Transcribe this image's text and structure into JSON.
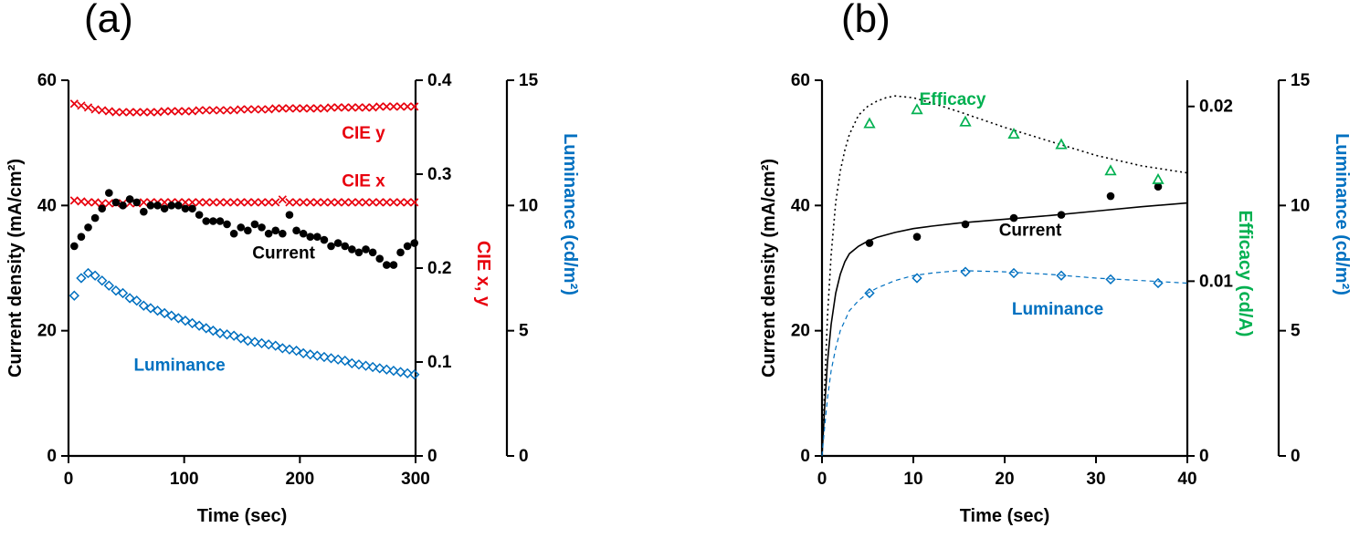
{
  "page": {
    "background": "#ffffff"
  },
  "colors": {
    "red": "#e8000d",
    "blue": "#0070c0",
    "green": "#00b050",
    "black": "#000000"
  },
  "chart_data": [
    {
      "type": "scatter",
      "panel_label": "(a)",
      "xlabel": "Time (sec)",
      "x_ticks": [
        "0",
        "100",
        "200",
        "300"
      ],
      "x_tick_values": [
        0,
        100,
        200,
        300
      ],
      "xlim": [
        0,
        300
      ],
      "grid": false,
      "axes": {
        "left": {
          "label": "Current density (mA/cm²)",
          "color": "#000000",
          "tick_labels": [
            "0",
            "20",
            "40",
            "60"
          ],
          "tick_values": [
            0,
            20,
            40,
            60
          ],
          "lim": [
            0,
            60
          ]
        },
        "right1": {
          "label": "CIE x, y",
          "color": "#e8000d",
          "tick_labels": [
            "0",
            "0.1",
            "0.2",
            "0.3",
            "0.4"
          ],
          "tick_values": [
            0,
            0.1,
            0.2,
            0.3,
            0.4
          ],
          "lim": [
            0,
            0.4
          ]
        },
        "right2": {
          "label": "Luminance (cd/m²)",
          "color": "#0070c0",
          "tick_labels": [
            "0",
            "5",
            "10",
            "15"
          ],
          "tick_values": [
            0,
            5,
            10,
            15
          ],
          "lim": [
            0,
            15
          ]
        }
      },
      "series": [
        {
          "name": "CIE y",
          "axis": "right1",
          "marker": "x",
          "line": "none",
          "color": "#e8000d",
          "x": [
            5,
            11,
            17,
            23,
            29,
            35,
            41,
            47,
            53,
            59,
            65,
            71,
            77,
            83,
            89,
            95,
            101,
            107,
            113,
            119,
            125,
            131,
            137,
            143,
            149,
            155,
            161,
            167,
            173,
            179,
            185,
            191,
            197,
            203,
            209,
            215,
            221,
            227,
            233,
            239,
            245,
            251,
            257,
            263,
            269,
            275,
            281,
            287,
            293,
            299
          ],
          "y": [
            0.375,
            0.373,
            0.371,
            0.369,
            0.368,
            0.367,
            0.366,
            0.366,
            0.366,
            0.366,
            0.366,
            0.366,
            0.366,
            0.367,
            0.367,
            0.367,
            0.367,
            0.367,
            0.368,
            0.368,
            0.368,
            0.368,
            0.368,
            0.368,
            0.369,
            0.369,
            0.369,
            0.369,
            0.369,
            0.37,
            0.37,
            0.37,
            0.37,
            0.37,
            0.37,
            0.37,
            0.37,
            0.371,
            0.371,
            0.371,
            0.371,
            0.371,
            0.371,
            0.371,
            0.372,
            0.372,
            0.372,
            0.372,
            0.372,
            0.372
          ]
        },
        {
          "name": "CIE x",
          "axis": "right1",
          "marker": "x",
          "line": "none",
          "color": "#e8000d",
          "x": [
            5,
            11,
            17,
            23,
            29,
            35,
            41,
            47,
            53,
            59,
            65,
            71,
            77,
            83,
            89,
            95,
            101,
            107,
            113,
            119,
            125,
            131,
            137,
            143,
            149,
            155,
            161,
            167,
            173,
            179,
            185,
            191,
            197,
            203,
            209,
            215,
            221,
            227,
            233,
            239,
            245,
            251,
            257,
            263,
            269,
            275,
            281,
            287,
            293,
            299
          ],
          "y": [
            0.272,
            0.271,
            0.27,
            0.27,
            0.269,
            0.269,
            0.269,
            0.269,
            0.269,
            0.269,
            0.27,
            0.27,
            0.27,
            0.27,
            0.27,
            0.27,
            0.27,
            0.27,
            0.27,
            0.27,
            0.27,
            0.27,
            0.27,
            0.27,
            0.27,
            0.27,
            0.27,
            0.27,
            0.27,
            0.27,
            0.273,
            0.27,
            0.27,
            0.27,
            0.27,
            0.27,
            0.27,
            0.27,
            0.27,
            0.27,
            0.27,
            0.27,
            0.27,
            0.27,
            0.27,
            0.27,
            0.27,
            0.27,
            0.27,
            0.27
          ]
        },
        {
          "name": "Current",
          "axis": "left",
          "marker": "circle",
          "line": "none",
          "color": "#000000",
          "x": [
            5,
            11,
            17,
            23,
            29,
            35,
            41,
            47,
            53,
            59,
            65,
            71,
            77,
            83,
            89,
            95,
            101,
            107,
            113,
            119,
            125,
            131,
            137,
            143,
            149,
            155,
            161,
            167,
            173,
            179,
            185,
            191,
            197,
            203,
            209,
            215,
            221,
            227,
            233,
            239,
            245,
            251,
            257,
            263,
            269,
            275,
            281,
            287,
            293,
            299
          ],
          "y": [
            33.5,
            35,
            36.5,
            38,
            39.5,
            42,
            40.5,
            40,
            41,
            40.5,
            39,
            40,
            40,
            39.5,
            40,
            40,
            39.5,
            39.5,
            38.5,
            37.5,
            37.5,
            37.5,
            37,
            35.5,
            36.5,
            36,
            37,
            36.5,
            35.5,
            36,
            35.5,
            38.5,
            36,
            35.5,
            35,
            35,
            34.5,
            33.5,
            34,
            33.5,
            33,
            32.5,
            33,
            32.5,
            31.5,
            30.5,
            30.5,
            32.5,
            33.5,
            34
          ]
        },
        {
          "name": "Luminance",
          "axis": "right2",
          "marker": "diamond-open",
          "line": "none",
          "color": "#0070c0",
          "x": [
            5,
            11,
            17,
            23,
            29,
            35,
            41,
            47,
            53,
            59,
            65,
            71,
            77,
            83,
            89,
            95,
            101,
            107,
            113,
            119,
            125,
            131,
            137,
            143,
            149,
            155,
            161,
            167,
            173,
            179,
            185,
            191,
            197,
            203,
            209,
            215,
            221,
            227,
            233,
            239,
            245,
            251,
            257,
            263,
            269,
            275,
            281,
            287,
            293,
            299
          ],
          "y": [
            6.4,
            7.1,
            7.3,
            7.2,
            7.0,
            6.8,
            6.6,
            6.5,
            6.3,
            6.2,
            6.0,
            5.9,
            5.8,
            5.7,
            5.6,
            5.5,
            5.4,
            5.3,
            5.2,
            5.1,
            5.0,
            4.9,
            4.85,
            4.8,
            4.7,
            4.6,
            4.55,
            4.5,
            4.45,
            4.4,
            4.3,
            4.25,
            4.2,
            4.1,
            4.05,
            4.0,
            3.95,
            3.9,
            3.85,
            3.8,
            3.7,
            3.65,
            3.6,
            3.55,
            3.5,
            3.45,
            3.4,
            3.35,
            3.3,
            3.25
          ]
        }
      ],
      "annotations": [
        {
          "text": "CIE y",
          "color": "#e8000d",
          "axis": "right1",
          "x": 255,
          "y": 0.338
        },
        {
          "text": "CIE x",
          "color": "#e8000d",
          "axis": "right1",
          "x": 255,
          "y": 0.287
        },
        {
          "text": "Current",
          "color": "#000000",
          "axis": "left",
          "x": 186,
          "y": 31.5
        },
        {
          "text": "Luminance",
          "color": "#0070c0",
          "axis": "right2",
          "x": 96,
          "y": 3.4
        }
      ]
    },
    {
      "type": "scatter",
      "panel_label": "(b)",
      "xlabel": "Time (sec)",
      "x_ticks": [
        "0",
        "10",
        "20",
        "30",
        "40"
      ],
      "x_tick_values": [
        0,
        10,
        20,
        30,
        40
      ],
      "xlim": [
        0,
        40
      ],
      "grid": false,
      "axes": {
        "left": {
          "label": "Current density (mA/cm²)",
          "color": "#000000",
          "tick_labels": [
            "0",
            "20",
            "40",
            "60"
          ],
          "tick_values": [
            0,
            20,
            40,
            60
          ],
          "lim": [
            0,
            60
          ]
        },
        "right1": {
          "label": "Efficacy (cd/A)",
          "color": "#00b050",
          "tick_labels": [
            "0",
            "0.01",
            "0.02"
          ],
          "tick_values": [
            0,
            0.01,
            0.02
          ],
          "lim": [
            0,
            0.0215
          ]
        },
        "right2": {
          "label": "Luminance (cd/m²)",
          "color": "#0070c0",
          "tick_labels": [
            "0",
            "5",
            "10",
            "15"
          ],
          "tick_values": [
            0,
            5,
            10,
            15
          ],
          "lim": [
            0,
            15
          ]
        }
      },
      "series": [
        {
          "name": "Current fit",
          "axis": "left",
          "marker": "none",
          "line": "solid",
          "color": "#000000",
          "width": 1.6,
          "x": [
            0,
            0.3,
            0.6,
            1,
            1.5,
            2,
            2.5,
            3,
            4,
            5,
            6,
            8,
            10,
            12,
            15,
            20,
            25,
            30,
            35,
            40
          ],
          "y": [
            0,
            8,
            15,
            21,
            26,
            29,
            31,
            32.3,
            33.5,
            34.3,
            34.9,
            35.7,
            36.3,
            36.7,
            37.2,
            37.8,
            38.4,
            39.1,
            39.8,
            40.4
          ]
        },
        {
          "name": "Efficacy fit",
          "axis": "right1",
          "marker": "none",
          "line": "dotted",
          "color": "#000000",
          "width": 1.6,
          "x": [
            0,
            0.3,
            0.6,
            1,
            1.5,
            2,
            2.5,
            3,
            4,
            5,
            6,
            7,
            8,
            10,
            12,
            15,
            20,
            25,
            30,
            35,
            40
          ],
          "y": [
            0,
            0.004,
            0.008,
            0.0115,
            0.0145,
            0.0163,
            0.0175,
            0.0184,
            0.0195,
            0.02,
            0.0203,
            0.0205,
            0.0206,
            0.0205,
            0.0202,
            0.0197,
            0.0188,
            0.018,
            0.0172,
            0.0166,
            0.0162
          ]
        },
        {
          "name": "Luminance fit",
          "axis": "right2",
          "marker": "none",
          "line": "dashed",
          "color": "#0070c0",
          "width": 1.2,
          "x": [
            0,
            0.3,
            0.6,
            1,
            1.5,
            2,
            3,
            4,
            5,
            6,
            8,
            10,
            12,
            15,
            20,
            25,
            30,
            35,
            40
          ],
          "y": [
            0,
            1.2,
            2.3,
            3.4,
            4.3,
            5.0,
            5.8,
            6.2,
            6.5,
            6.7,
            7.0,
            7.2,
            7.3,
            7.4,
            7.35,
            7.25,
            7.1,
            7.0,
            6.9
          ]
        },
        {
          "name": "Current",
          "axis": "left",
          "marker": "circle",
          "line": "none",
          "color": "#000000",
          "x": [
            5.2,
            10.4,
            15.7,
            21,
            26.2,
            31.6,
            36.8
          ],
          "y": [
            34,
            35,
            37,
            38,
            38.5,
            41.5,
            43
          ]
        },
        {
          "name": "Efficacy",
          "axis": "right1",
          "marker": "triangle-open",
          "line": "none",
          "color": "#00b050",
          "x": [
            5.2,
            10.4,
            15.7,
            21,
            26.2,
            31.6,
            36.8
          ],
          "y": [
            0.019,
            0.0198,
            0.0191,
            0.0184,
            0.0178,
            0.0163,
            0.0158
          ]
        },
        {
          "name": "Luminance",
          "axis": "right2",
          "marker": "diamond-open",
          "line": "none",
          "color": "#0070c0",
          "x": [
            5.2,
            10.4,
            15.7,
            21,
            26.2,
            31.6,
            36.8
          ],
          "y": [
            6.5,
            7.1,
            7.35,
            7.3,
            7.2,
            7.05,
            6.9
          ]
        }
      ],
      "annotations": [
        {
          "text": "Efficacy",
          "color": "#00b050",
          "axis": "right1",
          "x": 14.3,
          "y": 0.0201
        },
        {
          "text": "Current",
          "color": "#000000",
          "axis": "left",
          "x": 22.8,
          "y": 35.2
        },
        {
          "text": "Luminance",
          "color": "#0070c0",
          "axis": "right2",
          "x": 25.8,
          "y": 5.65
        }
      ]
    }
  ]
}
